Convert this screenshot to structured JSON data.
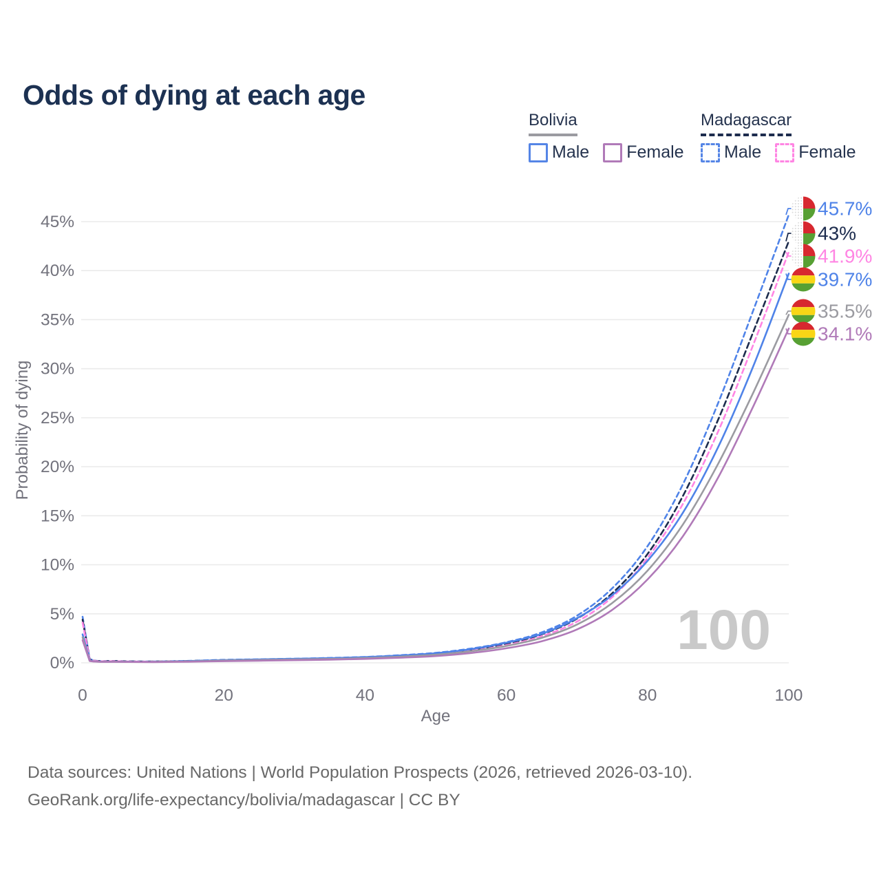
{
  "title": "Odds of dying at each age",
  "watermark": "100",
  "legend": {
    "groups": [
      {
        "name": "Bolivia",
        "style": "solid",
        "items": [
          {
            "label": "Male",
            "color": "#5585e6",
            "dashed": false
          },
          {
            "label": "Female",
            "color": "#b07ab8",
            "dashed": false
          }
        ]
      },
      {
        "name": "Madagascar",
        "style": "dashed",
        "items": [
          {
            "label": "Male",
            "color": "#5585e6",
            "dashed": true
          },
          {
            "label": "Female",
            "color": "#ff85e3",
            "dashed": true
          }
        ]
      }
    ]
  },
  "footer": {
    "line1": "Data sources: United Nations | World Population Prospects (2026, retrieved 2026-03-10).",
    "line2": "GeoRank.org/life-expectancy/bolivia/madagascar | CC BY"
  },
  "colors": {
    "male_blue": "#4f83e8",
    "bolivia_female_purple": "#b07ab8",
    "madagascar_female_pink": "#ff85e3",
    "madagascar_total_navy": "#1d2c4e",
    "bolivia_total_gray": "#9b9ba1",
    "gridline": "#ebebeb",
    "tick_text": "#72727c",
    "watermark_gray": "#c9c9c9",
    "flag_red": "#d7282f",
    "flag_yellow": "#f9d616",
    "flag_green": "#57a033"
  },
  "chart_data": {
    "type": "line",
    "title": "Odds of dying at each age",
    "xlabel": "Age",
    "ylabel": "Probability of dying",
    "xlim": [
      0,
      100
    ],
    "ylim_pct": [
      0,
      46
    ],
    "grid": "horizontal-only",
    "x_ticks": [
      0,
      20,
      40,
      60,
      80,
      100
    ],
    "y_ticks_pct": [
      0,
      5,
      10,
      15,
      20,
      25,
      30,
      35,
      40,
      45
    ],
    "x": [
      0,
      1,
      5,
      10,
      15,
      20,
      25,
      30,
      35,
      40,
      45,
      50,
      55,
      60,
      65,
      70,
      75,
      80,
      85,
      90,
      95,
      100
    ],
    "series": [
      {
        "id": "madagascar-male",
        "country": "Madagascar",
        "sex": "Male",
        "color": "#4f83e8",
        "dash": "7 5",
        "end_label": "45.7%",
        "end_value_pct": 45.7,
        "flag": "mg",
        "values_pct": [
          4.7,
          0.4,
          0.18,
          0.14,
          0.2,
          0.3,
          0.36,
          0.42,
          0.5,
          0.6,
          0.78,
          1.02,
          1.45,
          2.1,
          3.1,
          4.8,
          7.6,
          11.9,
          18.2,
          26.5,
          36.0,
          45.7
        ]
      },
      {
        "id": "madagascar-total",
        "country": "Madagascar",
        "sex": "Both",
        "color": "#1d2c4e",
        "dash": "8 5",
        "end_label": "43%",
        "end_value_pct": 43,
        "flag": "mg",
        "values_pct": [
          4.4,
          0.37,
          0.17,
          0.13,
          0.18,
          0.27,
          0.33,
          0.38,
          0.45,
          0.55,
          0.71,
          0.93,
          1.33,
          1.95,
          2.9,
          4.5,
          7.1,
          11.1,
          17.0,
          24.8,
          33.8,
          43.0
        ]
      },
      {
        "id": "madagascar-female",
        "country": "Madagascar",
        "sex": "Female",
        "color": "#ff85e3",
        "dash": "7 5",
        "end_label": "41.9%",
        "end_value_pct": 41.9,
        "flag": "mg",
        "values_pct": [
          4.1,
          0.34,
          0.16,
          0.12,
          0.16,
          0.23,
          0.29,
          0.34,
          0.41,
          0.5,
          0.64,
          0.85,
          1.22,
          1.8,
          2.7,
          4.2,
          6.7,
          10.7,
          16.2,
          23.6,
          32.5,
          41.9
        ]
      },
      {
        "id": "bolivia-male",
        "country": "Bolivia",
        "sex": "Male",
        "color": "#4f83e8",
        "dash": null,
        "end_label": "39.7%",
        "end_value_pct": 39.7,
        "flag": "bo",
        "values_pct": [
          2.9,
          0.24,
          0.12,
          0.1,
          0.17,
          0.28,
          0.35,
          0.41,
          0.48,
          0.58,
          0.75,
          0.98,
          1.4,
          2.05,
          2.95,
          4.55,
          6.9,
          10.4,
          15.3,
          22.0,
          30.3,
          39.7
        ]
      },
      {
        "id": "bolivia-total",
        "country": "Bolivia",
        "sex": "Both",
        "color": "#9b9ba1",
        "dash": null,
        "end_label": "35.5%",
        "end_value_pct": 35.5,
        "flag": "bo",
        "values_pct": [
          2.6,
          0.21,
          0.11,
          0.09,
          0.14,
          0.23,
          0.29,
          0.34,
          0.4,
          0.49,
          0.63,
          0.83,
          1.18,
          1.72,
          2.55,
          3.9,
          6.1,
          9.4,
          14.1,
          20.3,
          27.6,
          35.5
        ]
      },
      {
        "id": "bolivia-female",
        "country": "Bolivia",
        "sex": "Female",
        "color": "#b07ab8",
        "dash": null,
        "end_label": "34.1%",
        "end_value_pct": 34.1,
        "flag": "bo",
        "values_pct": [
          2.3,
          0.19,
          0.1,
          0.08,
          0.11,
          0.17,
          0.22,
          0.27,
          0.32,
          0.4,
          0.52,
          0.69,
          1.0,
          1.48,
          2.2,
          3.4,
          5.4,
          8.5,
          12.9,
          18.9,
          26.2,
          34.1
        ]
      }
    ]
  }
}
